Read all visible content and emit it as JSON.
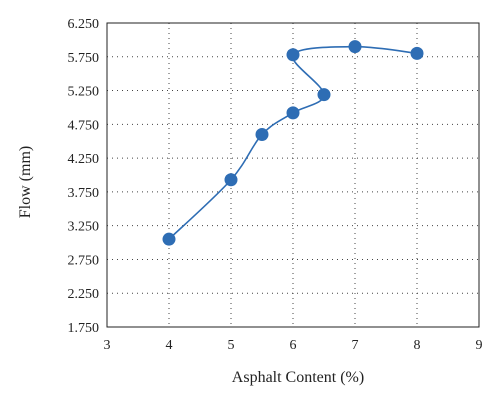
{
  "chart_data": {
    "type": "scatter",
    "title": "",
    "xlabel": "Asphalt Content (%)",
    "ylabel": "Flow (mm)",
    "xlim": [
      3,
      9
    ],
    "ylim": [
      1.75,
      6.25
    ],
    "x_ticks": [
      "3",
      "4",
      "5",
      "6",
      "7",
      "8",
      "9"
    ],
    "x_tick_values": [
      3,
      4,
      5,
      6,
      7,
      8,
      9
    ],
    "y_ticks": [
      "6.250",
      "5.750",
      "5.250",
      "4.750",
      "4.250",
      "3.750",
      "3.250",
      "2.750",
      "2.250",
      "1.750"
    ],
    "y_tick_values": [
      6.25,
      5.75,
      5.25,
      4.75,
      4.25,
      3.75,
      3.25,
      2.75,
      2.25,
      1.75
    ],
    "grid": true,
    "smooth_line": true,
    "series": [
      {
        "color": "#2e6db4",
        "points": [
          {
            "x": 4,
            "y": 3.05
          },
          {
            "x": 5,
            "y": 3.93
          },
          {
            "x": 5.5,
            "y": 4.6
          },
          {
            "x": 6,
            "y": 4.92
          },
          {
            "x": 6.5,
            "y": 5.19
          },
          {
            "x": 6,
            "y": 5.78
          },
          {
            "x": 7,
            "y": 5.9
          },
          {
            "x": 8,
            "y": 5.8
          }
        ]
      }
    ]
  }
}
